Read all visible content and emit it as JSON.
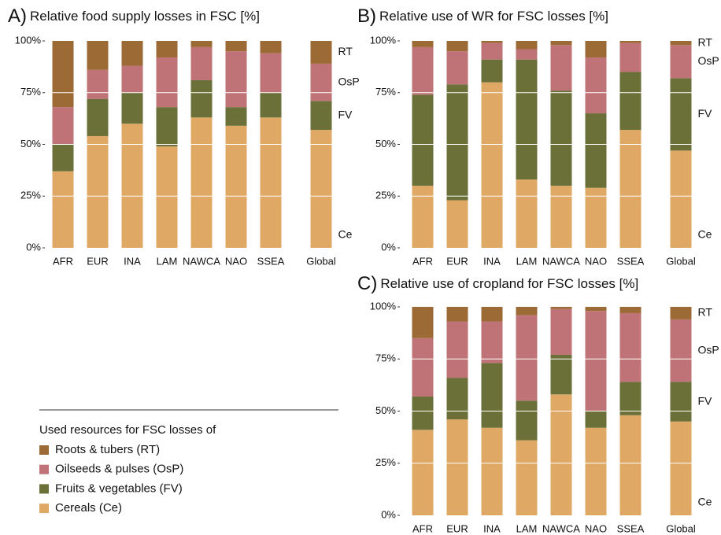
{
  "chart_data": [
    {
      "type": "bar",
      "stacked": true,
      "panel": "A)",
      "title": "Relative food supply losses in FSC [%]",
      "categories": [
        "AFR",
        "EUR",
        "INA",
        "LAM",
        "NAWCA",
        "NAO",
        "SSEA",
        "Global"
      ],
      "series": [
        {
          "name": "Ce",
          "color": "#dfa864",
          "values": [
            37,
            54,
            60,
            49,
            63,
            59,
            63,
            57
          ]
        },
        {
          "name": "FV",
          "color": "#6b7039",
          "values": [
            13,
            18,
            15,
            19,
            18,
            9,
            12,
            14
          ]
        },
        {
          "name": "OsP",
          "color": "#bf7377",
          "values": [
            18,
            14,
            13,
            24,
            16,
            27,
            19,
            18
          ]
        },
        {
          "name": "RT",
          "color": "#9b6a35",
          "values": [
            32,
            14,
            12,
            8,
            3,
            5,
            6,
            11
          ]
        }
      ],
      "ylim": [
        0,
        100
      ],
      "yticks": [
        {
          "value": 0,
          "label": "0%"
        },
        {
          "value": 25,
          "label": "25%"
        },
        {
          "value": 50,
          "label": "50%"
        },
        {
          "value": 75,
          "label": "75%"
        },
        {
          "value": 100,
          "label": "100%"
        }
      ],
      "grid": true
    },
    {
      "type": "bar",
      "stacked": true,
      "panel": "B)",
      "title": "Relative use of WR for FSC losses [%]",
      "categories": [
        "AFR",
        "EUR",
        "INA",
        "LAM",
        "NAWCA",
        "NAO",
        "SSEA",
        "Global"
      ],
      "series": [
        {
          "name": "Ce",
          "color": "#dfa864",
          "values": [
            30,
            23,
            80,
            33,
            30,
            29,
            57,
            47
          ]
        },
        {
          "name": "FV",
          "color": "#6b7039",
          "values": [
            44,
            56,
            11,
            58,
            46,
            36,
            28,
            35
          ]
        },
        {
          "name": "OsP",
          "color": "#bf7377",
          "values": [
            23,
            16,
            8,
            5,
            22,
            27,
            14,
            16
          ]
        },
        {
          "name": "RT",
          "color": "#9b6a35",
          "values": [
            3,
            5,
            1,
            4,
            2,
            8,
            1,
            2
          ]
        }
      ],
      "ylim": [
        0,
        100
      ],
      "yticks": [
        {
          "value": 0,
          "label": "0%"
        },
        {
          "value": 25,
          "label": "25%"
        },
        {
          "value": 50,
          "label": "50%"
        },
        {
          "value": 75,
          "label": "75%"
        },
        {
          "value": 100,
          "label": "100%"
        }
      ],
      "grid": true
    },
    {
      "type": "bar",
      "stacked": true,
      "panel": "C)",
      "title": "Relative use of cropland for FSC losses [%]",
      "categories": [
        "AFR",
        "EUR",
        "INA",
        "LAM",
        "NAWCA",
        "NAO",
        "SSEA",
        "Global"
      ],
      "series": [
        {
          "name": "Ce",
          "color": "#dfa864",
          "values": [
            41,
            46,
            42,
            36,
            58,
            42,
            48,
            45
          ]
        },
        {
          "name": "FV",
          "color": "#6b7039",
          "values": [
            16,
            20,
            31,
            19,
            19,
            8,
            16,
            19
          ]
        },
        {
          "name": "OsP",
          "color": "#bf7377",
          "values": [
            28,
            27,
            20,
            41,
            22,
            48,
            33,
            30
          ]
        },
        {
          "name": "RT",
          "color": "#9b6a35",
          "values": [
            15,
            7,
            7,
            4,
            1,
            2,
            3,
            6
          ]
        }
      ],
      "ylim": [
        0,
        100
      ],
      "yticks": [
        {
          "value": 0,
          "label": "0%"
        },
        {
          "value": 25,
          "label": "25%"
        },
        {
          "value": 50,
          "label": "50%"
        },
        {
          "value": 75,
          "label": "75%"
        },
        {
          "value": 100,
          "label": "100%"
        }
      ],
      "grid": true
    }
  ],
  "legend": {
    "title": "Used resources for FSC losses of",
    "entries": [
      {
        "name": "Roots & tubers (RT)",
        "color": "#9b6a35"
      },
      {
        "name": "Oilseeds & pulses (OsP)",
        "color": "#bf7377"
      },
      {
        "name": "Fruits & vegetables (FV)",
        "color": "#6b7039"
      },
      {
        "name": "Cereals (Ce)",
        "color": "#dfa864"
      }
    ]
  }
}
